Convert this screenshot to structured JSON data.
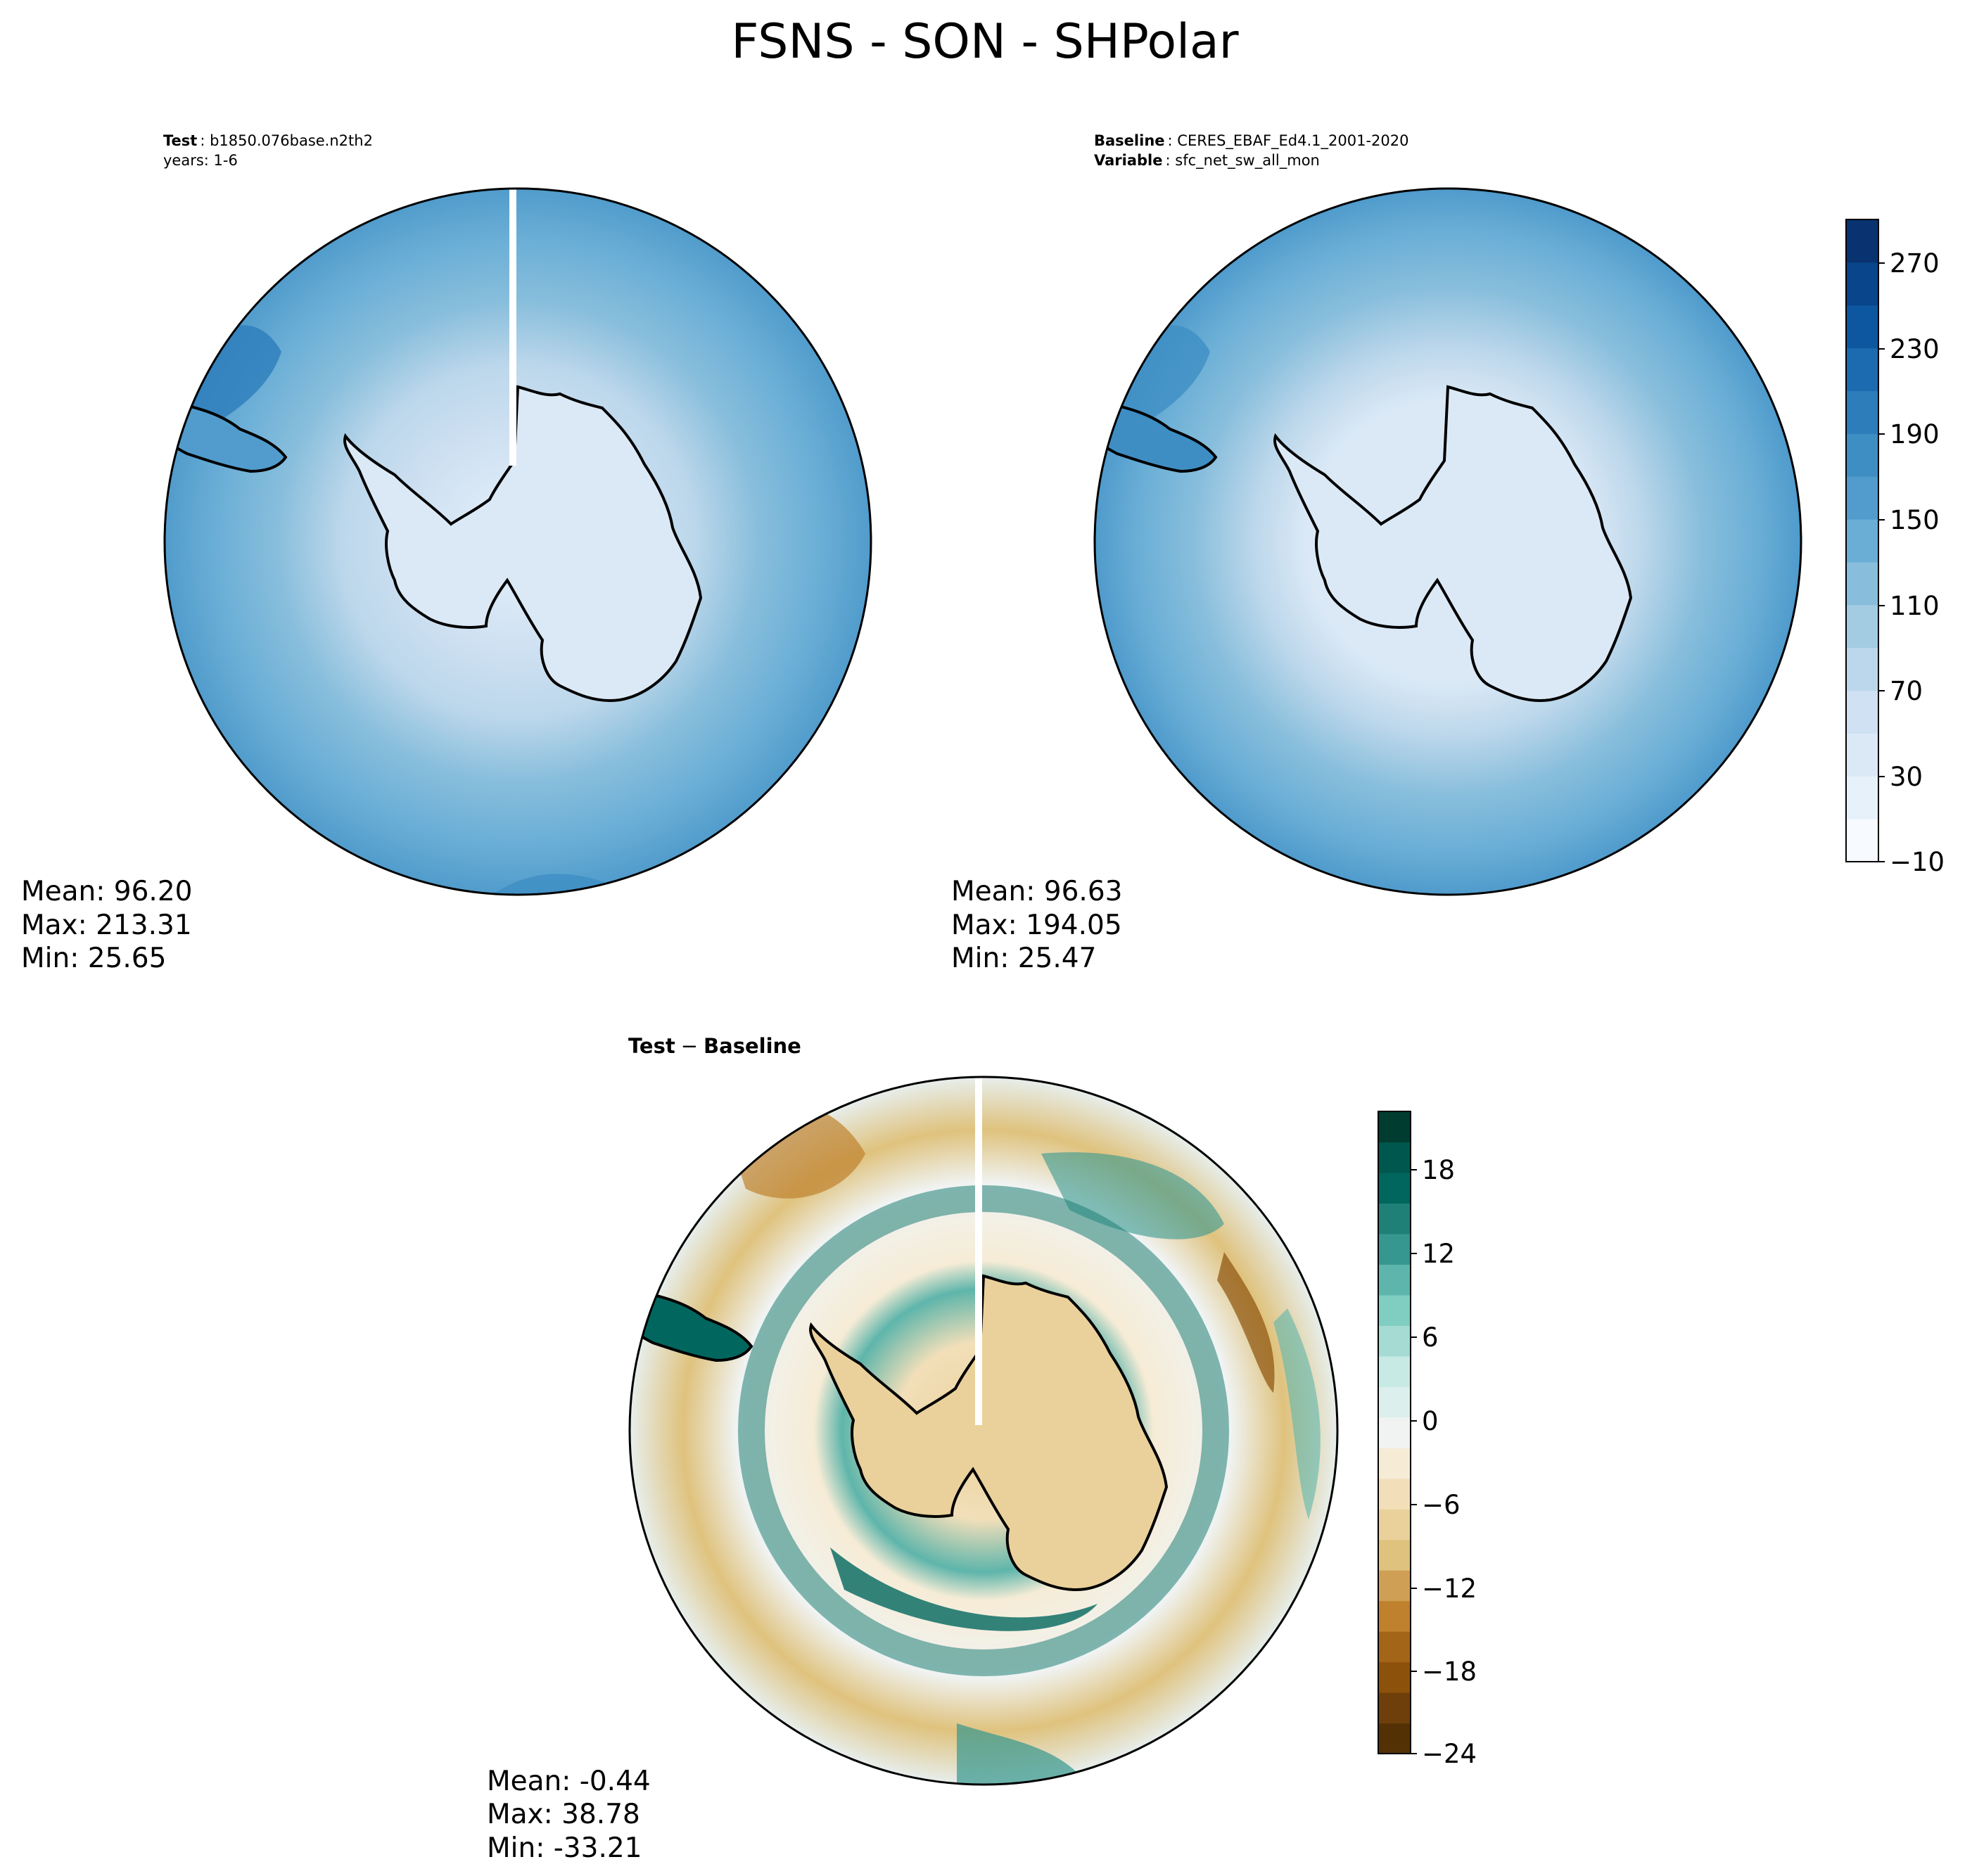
{
  "title": "FSNS - SON - SHPolar",
  "panels": {
    "test": {
      "key1": "Test",
      "val1": "b1850.076base.n2th2",
      "line2": "years: 1-6",
      "mean": "Mean: 96.20",
      "max": "Max: 213.31",
      "min": "Min: 25.65"
    },
    "baseline": {
      "key1": "Baseline",
      "val1": "CERES_EBAF_Ed4.1_2001-2020",
      "key2": "Variable",
      "val2": "sfc_net_sw_all_mon",
      "mean": "Mean: 96.63",
      "max": "Max: 194.05",
      "min": "Min: 25.47"
    },
    "diff": {
      "key1": "Test",
      "sep": "−",
      "key2": "Baseline",
      "mean": "Mean: -0.44",
      "max": "Max: 38.78",
      "min": "Min: -33.21"
    }
  },
  "colorbars": {
    "main": {
      "ticks": [
        "270",
        "230",
        "190",
        "150",
        "110",
        "70",
        "30",
        "−10"
      ],
      "range": [
        -10,
        290
      ],
      "step": 20,
      "colors": [
        "#f7fbff",
        "#e7f1fa",
        "#dbe9f6",
        "#cfe1f2",
        "#bcd7eb",
        "#a3cce3",
        "#88bedc",
        "#6aaed6",
        "#519ccc",
        "#3e8ec4",
        "#2d7dbb",
        "#1c6aaf",
        "#0d57a0",
        "#08458a",
        "#083370"
      ]
    },
    "diff": {
      "ticks": [
        "18",
        "12",
        "6",
        "0",
        "−6",
        "−12",
        "−18",
        "−24"
      ],
      "range": [
        -24,
        22
      ],
      "colors": [
        "#543005",
        "#6e3f0a",
        "#8c510a",
        "#a36518",
        "#bf812d",
        "#cf9f55",
        "#dfc27d",
        "#ead19b",
        "#f2dfb9",
        "#f6ecd6",
        "#f0f3f2",
        "#dcefec",
        "#c7eae5",
        "#a5dbd2",
        "#80cdc1",
        "#5eb5ab",
        "#35978f",
        "#1f8077",
        "#01665e",
        "#00574d",
        "#003c30"
      ]
    }
  },
  "map_colors": {
    "coastline": "#000000",
    "antarctica_fill": "#dde8f5"
  }
}
